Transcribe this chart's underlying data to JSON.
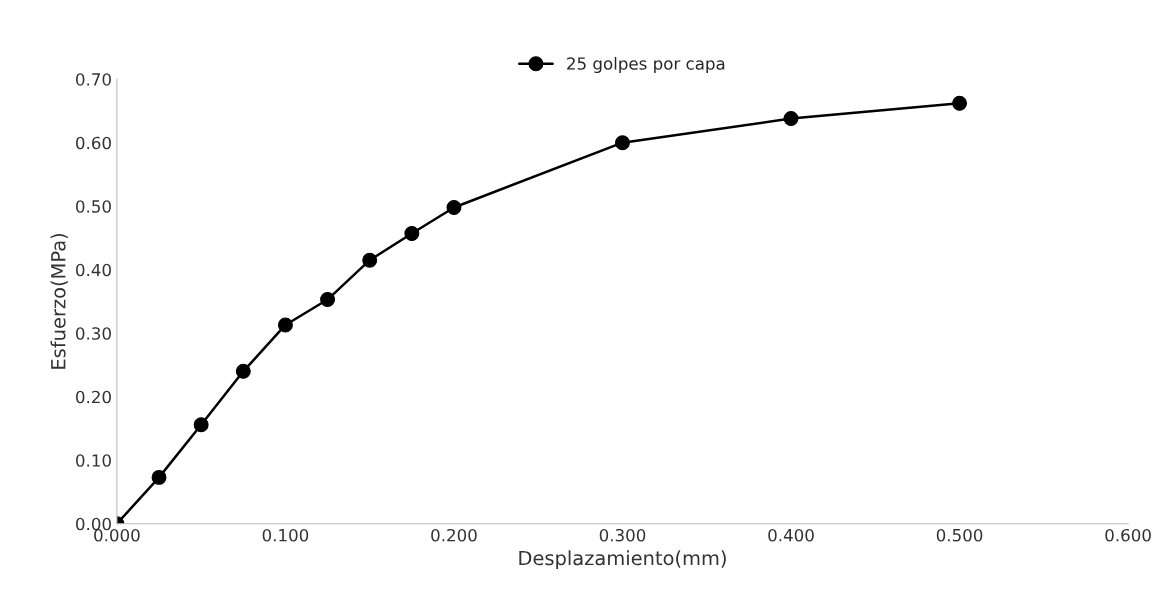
{
  "chart_data": {
    "type": "line",
    "xlabel": "Desplazamiento(mm)",
    "ylabel": "Esfuerzo(MPa)",
    "x": [
      0.0,
      0.025,
      0.05,
      0.075,
      0.1,
      0.125,
      0.15,
      0.175,
      0.2,
      0.3,
      0.4,
      0.5
    ],
    "series": [
      {
        "name": "25 golpes por capa",
        "color": "#000000",
        "values": [
          0.0,
          0.073,
          0.156,
          0.24,
          0.313,
          0.353,
          0.415,
          0.457,
          0.498,
          0.6,
          0.638,
          0.662
        ]
      }
    ],
    "xlim": [
      0.0,
      0.6
    ],
    "xticks": [
      {
        "value": 0.0,
        "label": "0.000"
      },
      {
        "value": 0.1,
        "label": "0.100"
      },
      {
        "value": 0.2,
        "label": "0.200"
      },
      {
        "value": 0.3,
        "label": "0.300"
      },
      {
        "value": 0.4,
        "label": "0.400"
      },
      {
        "value": 0.5,
        "label": "0.500"
      },
      {
        "value": 0.6,
        "label": "0.600"
      }
    ],
    "ylim": [
      0.0,
      0.7
    ],
    "yticks": [
      {
        "value": 0.0,
        "label": "0.00"
      },
      {
        "value": 0.1,
        "label": "0.10"
      },
      {
        "value": 0.2,
        "label": "0.20"
      },
      {
        "value": 0.3,
        "label": "0.30"
      },
      {
        "value": 0.4,
        "label": "0.40"
      },
      {
        "value": 0.5,
        "label": "0.50"
      },
      {
        "value": 0.6,
        "label": "0.60"
      },
      {
        "value": 0.7,
        "label": "0.70"
      }
    ],
    "grid": false,
    "legend": "top",
    "marker": "circle",
    "line_style": "solid"
  }
}
